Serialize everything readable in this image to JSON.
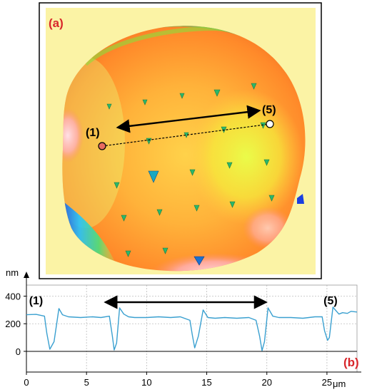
{
  "panel_a": {
    "label": "(a)",
    "marker_start_label": "(1)",
    "marker_end_label": "(5)",
    "background_color": "#fbf3a5",
    "label_color": "#d8262b"
  },
  "chart_data": {
    "type": "line",
    "panel_label": "(b)",
    "title": "",
    "xlabel": "μm",
    "ylabel": "nm",
    "xlim": [
      0,
      27.5
    ],
    "ylim": [
      -150,
      480
    ],
    "x_ticks": [
      0,
      5,
      10,
      15,
      20,
      25
    ],
    "y_ticks": [
      0,
      200,
      400
    ],
    "grid": true,
    "annotations": [
      {
        "text": "(1)",
        "x": 0.8,
        "y": 340
      },
      {
        "text": "(5)",
        "x": 25.3,
        "y": 340
      }
    ],
    "arrow_range_um": [
      7.0,
      19.5
    ],
    "series": [
      {
        "color": "#3aa0d0",
        "x": [
          0,
          0.8,
          1.5,
          1.7,
          1.95,
          2.3,
          2.7,
          3.0,
          3.5,
          4.5,
          5.5,
          6.2,
          6.9,
          7.15,
          7.3,
          7.5,
          7.75,
          8.1,
          8.5,
          9.0,
          10,
          11,
          12,
          12.8,
          13.6,
          13.8,
          14.0,
          14.3,
          14.7,
          15.1,
          15.7,
          16.5,
          17.5,
          18.5,
          19.1,
          19.4,
          19.6,
          19.8,
          20.1,
          20.5,
          21.0,
          22,
          23,
          24,
          24.6,
          24.8,
          25.05,
          25.2,
          25.5,
          26.0,
          26.3,
          26.7,
          27.0,
          27.5
        ],
        "values": [
          265,
          268,
          255,
          130,
          15,
          70,
          310,
          265,
          250,
          245,
          250,
          245,
          255,
          110,
          10,
          60,
          315,
          270,
          250,
          245,
          245,
          250,
          245,
          250,
          225,
          120,
          25,
          110,
          300,
          245,
          240,
          245,
          240,
          245,
          225,
          110,
          5,
          70,
          315,
          255,
          245,
          245,
          240,
          250,
          250,
          150,
          80,
          100,
          320,
          270,
          280,
          275,
          290,
          285
        ]
      }
    ]
  }
}
